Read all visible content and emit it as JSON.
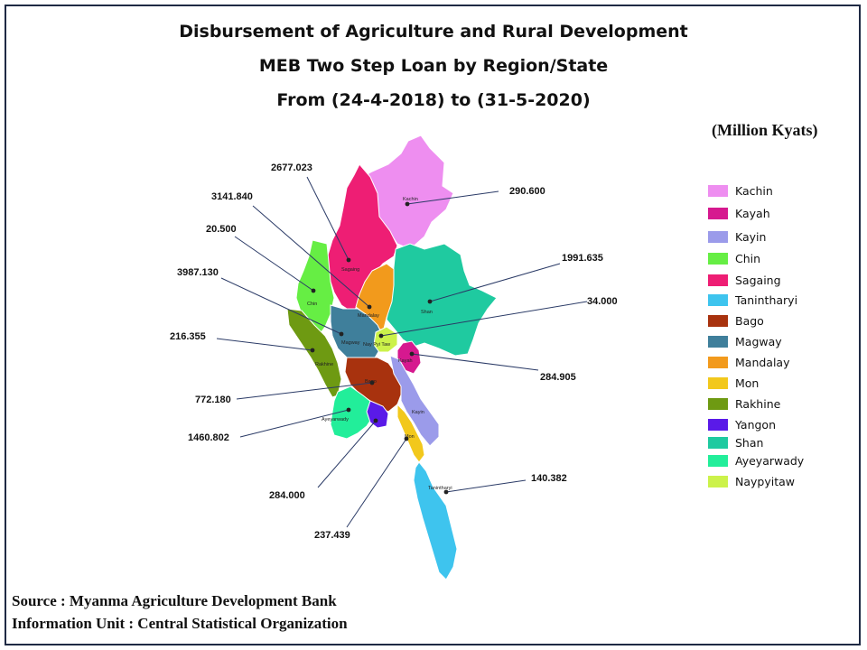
{
  "title": {
    "line1": "Disbursement of Agriculture and Rural Development",
    "line2": "MEB Two Step Loan by Region/State",
    "line3": "From (24-4-2018) to (31-5-2020)"
  },
  "unit": "(Million  Kyats)",
  "legend": [
    {
      "name": "Kachin",
      "color": "#ee8ef0"
    },
    {
      "name": "Kayah",
      "color": "#d6198f"
    },
    {
      "name": "Kayin",
      "color": "#9b9bea"
    },
    {
      "name": "Chin",
      "color": "#66ee44"
    },
    {
      "name": "Sagaing",
      "color": "#ee1e74"
    },
    {
      "name": "Tanintharyi",
      "color": "#3ec4ee"
    },
    {
      "name": "Bago",
      "color": "#a8320e"
    },
    {
      "name": "Magway",
      "color": "#3f7f9b"
    },
    {
      "name": "Mandalay",
      "color": "#f29a1c"
    },
    {
      "name": "Mon",
      "color": "#f2c81c"
    },
    {
      "name": "Rakhine",
      "color": "#6e9a12"
    },
    {
      "name": "Yangon",
      "color": "#5a1ae8"
    },
    {
      "name": "Shan",
      "color": "#1fcaa0"
    },
    {
      "name": "Ayeyarwady",
      "color": "#22ee9a"
    },
    {
      "name": "Naypyitaw",
      "color": "#ccf24a"
    }
  ],
  "regions": {
    "kachin": {
      "name": "Kachin",
      "value": "290.600"
    },
    "sagaing": {
      "name": "Sagaing",
      "value": "2677.023"
    },
    "shan": {
      "name": "Shan",
      "value": "1991.635"
    },
    "chin": {
      "name": "Chin",
      "value": "20.500"
    },
    "mandalay": {
      "name": "Mandalay",
      "value": "3141.840"
    },
    "magway": {
      "name": "Magway",
      "value": "3987.130"
    },
    "naypyitaw": {
      "name": "Nay Pyi Taw",
      "value": "34.000"
    },
    "rakhine": {
      "name": "Rakhine",
      "value": "216.355"
    },
    "kayah": {
      "name": "Kayah",
      "value": "284.905"
    },
    "bago": {
      "name": "Bago",
      "value": "772.180"
    },
    "ayeyarwady": {
      "name": "Ayeyarwady",
      "value": "1460.802"
    },
    "yangon": {
      "name": "Yangon",
      "value": "284.000"
    },
    "mon": {
      "name": "Mon",
      "value": "237.439"
    },
    "kayin": {
      "name": "Kayin",
      "value": "",
      "label": "Kayin"
    },
    "tanintharyi": {
      "name": "Tanintharyi",
      "value": "140.382"
    }
  },
  "source": {
    "line1": "Source : Myanma Agriculture Development Bank",
    "line2": "Information Unit : Central Statistical Organization"
  }
}
